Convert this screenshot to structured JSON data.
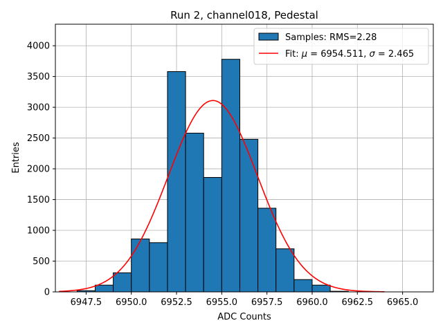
{
  "chart_data": {
    "type": "bar",
    "title": "Run 2, channel018, Pedestal",
    "xlabel": "ADC Counts",
    "ylabel": "Entries",
    "xlim": [
      6945.8,
      6966.7
    ],
    "ylim": [
      0,
      4350
    ],
    "xticks": [
      6947.5,
      6950.0,
      6952.5,
      6955.0,
      6957.5,
      6960.0,
      6962.5,
      6965.0
    ],
    "xtick_labels": [
      "6947.5",
      "6950.0",
      "6952.5",
      "6955.0",
      "6957.5",
      "6960.0",
      "6962.5",
      "6965.0"
    ],
    "yticks": [
      0,
      500,
      1000,
      1500,
      2000,
      2500,
      3000,
      3500,
      4000
    ],
    "ytick_labels": [
      "0",
      "500",
      "1000",
      "1500",
      "2000",
      "2500",
      "3000",
      "3500",
      "4000"
    ],
    "grid": true,
    "histogram": {
      "name": "Samples: RMS=2.28",
      "color": "#1f77b4",
      "edge_color": "#000000",
      "bins": [
        {
          "x0": 6947.0,
          "x1": 6948.0,
          "value": 20
        },
        {
          "x0": 6948.0,
          "x1": 6949.0,
          "value": 110
        },
        {
          "x0": 6949.0,
          "x1": 6950.0,
          "value": 310
        },
        {
          "x0": 6950.0,
          "x1": 6951.0,
          "value": 860
        },
        {
          "x0": 6951.0,
          "x1": 6952.0,
          "value": 800
        },
        {
          "x0": 6952.0,
          "x1": 6953.0,
          "value": 3580
        },
        {
          "x0": 6953.0,
          "x1": 6954.0,
          "value": 2580
        },
        {
          "x0": 6954.0,
          "x1": 6955.0,
          "value": 1860
        },
        {
          "x0": 6955.0,
          "x1": 6956.0,
          "value": 3780
        },
        {
          "x0": 6956.0,
          "x1": 6957.0,
          "value": 2480
        },
        {
          "x0": 6957.0,
          "x1": 6958.0,
          "value": 1360
        },
        {
          "x0": 6958.0,
          "x1": 6959.0,
          "value": 700
        },
        {
          "x0": 6959.0,
          "x1": 6960.0,
          "value": 200
        },
        {
          "x0": 6960.0,
          "x1": 6961.0,
          "value": 110
        },
        {
          "x0": 6961.0,
          "x1": 6962.0,
          "value": 10
        }
      ]
    },
    "fit": {
      "name": "Fit: μ = 6954.511, σ = 2.465",
      "color": "#ff0000",
      "mu": 6954.511,
      "sigma": 2.465,
      "amplitude": 3110,
      "x_range": [
        6946.0,
        6964.0
      ]
    },
    "legend": {
      "placement": "top-right",
      "entries": [
        {
          "label_prefix": "Samples: RMS=2.28",
          "kind": "patch"
        },
        {
          "label_prefix": "Fit: ",
          "mu_label": "μ",
          "mu_value": " = 6954.511, ",
          "sigma_label": "σ",
          "sigma_value": " = 2.465",
          "kind": "line"
        }
      ]
    }
  }
}
